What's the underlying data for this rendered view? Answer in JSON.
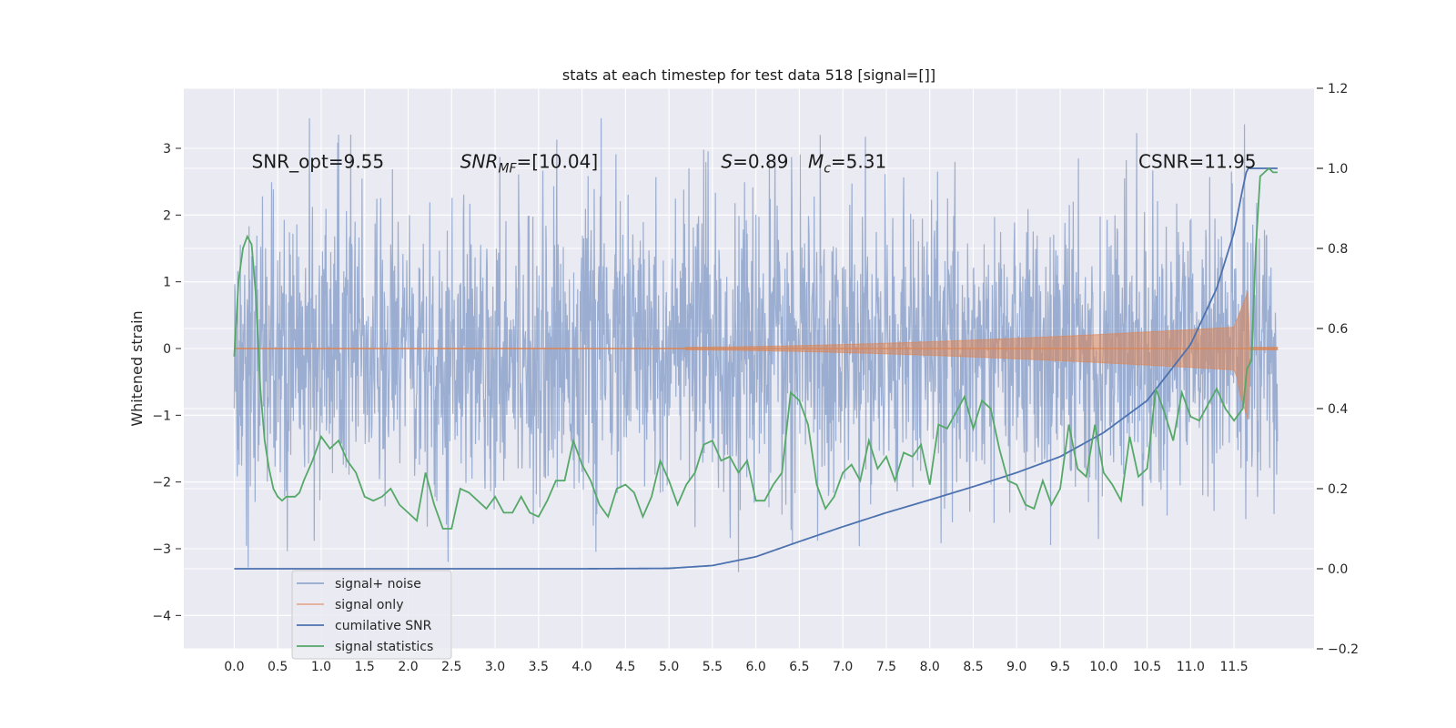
{
  "chart_data": {
    "type": "line",
    "title": "stats at each timestep for test data 518 [signal=[]]",
    "ylabel": "Whitened strain",
    "xlabel": "",
    "xlim": [
      -0.58,
      12.42
    ],
    "ylim": [
      -4.5,
      3.9
    ],
    "y2lim": [
      -0.2,
      1.2
    ],
    "grid": true,
    "x_ticks": [
      0.0,
      0.5,
      1.0,
      1.5,
      2.0,
      2.5,
      3.0,
      3.5,
      4.0,
      4.5,
      5.0,
      5.5,
      6.0,
      6.5,
      7.0,
      7.5,
      8.0,
      8.5,
      9.0,
      9.5,
      10.0,
      10.5,
      11.0,
      11.5
    ],
    "x_tick_labels": [
      "0.0",
      "0.5",
      "1.0",
      "1.5",
      "2.0",
      "2.5",
      "3.0",
      "3.5",
      "4.0",
      "4.5",
      "5.0",
      "5.5",
      "6.0",
      "6.5",
      "7.0",
      "7.5",
      "8.0",
      "8.5",
      "9.0",
      "9.5",
      "10.0",
      "10.5",
      "11.0",
      "11.5"
    ],
    "y_ticks": [
      -4,
      -3,
      -2,
      -1,
      0,
      1,
      2,
      3
    ],
    "y_tick_labels": [
      "−4",
      "−3",
      "−2",
      "−1",
      "0",
      "1",
      "2",
      "3"
    ],
    "y2_ticks": [
      -0.2,
      0.0,
      0.2,
      0.4,
      0.6,
      0.8,
      1.0,
      1.2
    ],
    "y2_tick_labels": [
      "−0.2",
      "0.0",
      "0.2",
      "0.4",
      "0.6",
      "0.8",
      "1.0",
      "1.2"
    ],
    "annotations": [
      {
        "text": "SNR_opt=9.55",
        "x": 0.2,
        "y": 2.8
      },
      {
        "text": "SNR_MF=[10.04]",
        "x": 2.6,
        "y": 2.8
      },
      {
        "text": "S=0.89",
        "x": 5.6,
        "y": 2.8
      },
      {
        "text": "M_c=5.31",
        "x": 6.6,
        "y": 2.8
      },
      {
        "text": "CSNR=11.95",
        "x": 10.4,
        "y": 2.8
      }
    ],
    "legend": {
      "placement": "lower-left",
      "entries": [
        "signal+ noise",
        "signal only",
        "cumilative SNR",
        "signal statistics"
      ]
    },
    "colors": {
      "noise": "#4c72b0",
      "signal": "#dd8452",
      "csnr": "#4c72b0",
      "stats": "#55a868",
      "axes_bg": "#eaeaf2",
      "grid": "#ffffff"
    },
    "series": [
      {
        "name": "signal+ noise",
        "axis": "left",
        "x_range": [
          0,
          12.0
        ],
        "y_range": [
          -4.1,
          3.45
        ]
      },
      {
        "name": "signal only",
        "axis": "left",
        "x_range": [
          0,
          12.0
        ],
        "y_range": [
          -1.15,
          0.88
        ]
      },
      {
        "name": "cumilative SNR",
        "axis": "right",
        "x": [
          0,
          1,
          2,
          3,
          4,
          5,
          5.5,
          6.0,
          6.5,
          7.0,
          7.5,
          8.0,
          8.5,
          9.0,
          9.5,
          10.0,
          10.5,
          11.0,
          11.3,
          11.5,
          11.6,
          11.65,
          11.7,
          12.0
        ],
        "y": [
          0,
          0,
          0,
          0,
          0,
          0.001,
          0.008,
          0.03,
          0.068,
          0.105,
          0.14,
          0.172,
          0.205,
          0.24,
          0.28,
          0.34,
          0.42,
          0.56,
          0.7,
          0.84,
          0.95,
          1.0,
          1.0,
          1.0
        ]
      },
      {
        "name": "signal statistics",
        "axis": "right",
        "x": [
          0.0,
          0.05,
          0.1,
          0.15,
          0.2,
          0.25,
          0.3,
          0.35,
          0.4,
          0.45,
          0.5,
          0.55,
          0.6,
          0.65,
          0.7,
          0.75,
          0.8,
          0.9,
          1.0,
          1.1,
          1.2,
          1.3,
          1.4,
          1.5,
          1.6,
          1.7,
          1.8,
          1.9,
          2.0,
          2.1,
          2.2,
          2.3,
          2.4,
          2.5,
          2.6,
          2.7,
          2.8,
          2.9,
          3.0,
          3.1,
          3.2,
          3.3,
          3.4,
          3.5,
          3.6,
          3.7,
          3.8,
          3.9,
          4.0,
          4.1,
          4.2,
          4.3,
          4.4,
          4.5,
          4.6,
          4.7,
          4.8,
          4.9,
          5.0,
          5.1,
          5.2,
          5.3,
          5.4,
          5.5,
          5.6,
          5.7,
          5.8,
          5.9,
          6.0,
          6.1,
          6.2,
          6.3,
          6.4,
          6.5,
          6.6,
          6.7,
          6.8,
          6.9,
          7.0,
          7.1,
          7.2,
          7.3,
          7.4,
          7.5,
          7.6,
          7.7,
          7.8,
          7.9,
          8.0,
          8.1,
          8.2,
          8.3,
          8.4,
          8.5,
          8.6,
          8.7,
          8.8,
          8.9,
          9.0,
          9.1,
          9.2,
          9.3,
          9.4,
          9.5,
          9.6,
          9.7,
          9.8,
          9.9,
          10.0,
          10.1,
          10.2,
          10.3,
          10.4,
          10.5,
          10.6,
          10.7,
          10.8,
          10.9,
          11.0,
          11.1,
          11.2,
          11.3,
          11.4,
          11.5,
          11.6,
          11.65,
          11.7,
          11.75,
          11.8,
          11.85,
          11.9,
          11.95,
          12.0
        ],
        "y": [
          0.53,
          0.72,
          0.8,
          0.83,
          0.81,
          0.68,
          0.45,
          0.32,
          0.25,
          0.2,
          0.18,
          0.17,
          0.18,
          0.18,
          0.18,
          0.19,
          0.22,
          0.27,
          0.33,
          0.3,
          0.32,
          0.27,
          0.24,
          0.18,
          0.17,
          0.18,
          0.2,
          0.16,
          0.14,
          0.12,
          0.24,
          0.16,
          0.1,
          0.1,
          0.2,
          0.19,
          0.17,
          0.15,
          0.18,
          0.14,
          0.14,
          0.18,
          0.14,
          0.13,
          0.17,
          0.22,
          0.22,
          0.32,
          0.26,
          0.22,
          0.16,
          0.13,
          0.2,
          0.21,
          0.19,
          0.13,
          0.18,
          0.27,
          0.22,
          0.16,
          0.21,
          0.24,
          0.31,
          0.32,
          0.27,
          0.28,
          0.24,
          0.27,
          0.17,
          0.17,
          0.21,
          0.24,
          0.44,
          0.42,
          0.36,
          0.21,
          0.15,
          0.18,
          0.24,
          0.26,
          0.22,
          0.32,
          0.25,
          0.28,
          0.22,
          0.29,
          0.28,
          0.31,
          0.21,
          0.36,
          0.35,
          0.39,
          0.43,
          0.35,
          0.42,
          0.4,
          0.3,
          0.22,
          0.21,
          0.16,
          0.15,
          0.22,
          0.16,
          0.2,
          0.36,
          0.25,
          0.23,
          0.36,
          0.24,
          0.21,
          0.17,
          0.33,
          0.23,
          0.25,
          0.45,
          0.39,
          0.32,
          0.44,
          0.38,
          0.37,
          0.41,
          0.45,
          0.4,
          0.37,
          0.4,
          0.5,
          0.52,
          0.8,
          0.98,
          0.99,
          1.0,
          0.99,
          0.99
        ]
      }
    ]
  }
}
